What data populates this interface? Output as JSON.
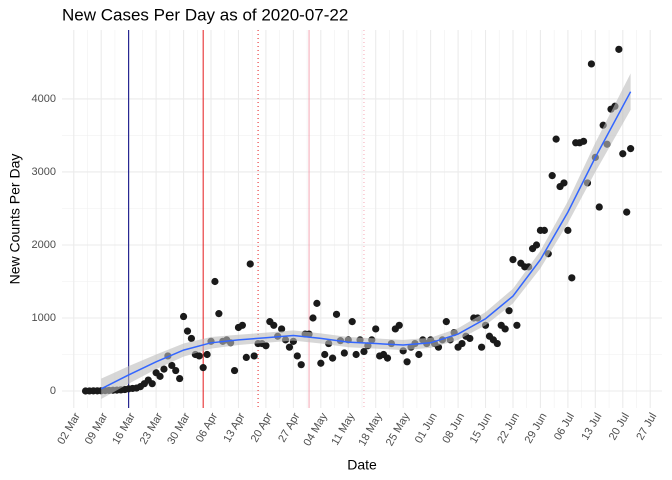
{
  "chart_data": {
    "type": "scatter",
    "title": "New Cases Per Day as of 2020-07-22",
    "x_label": "Date",
    "y_label": "New Counts Per Day",
    "x": [
      "2020-03-05",
      "2020-03-06",
      "2020-03-07",
      "2020-03-08",
      "2020-03-09",
      "2020-03-10",
      "2020-03-11",
      "2020-03-12",
      "2020-03-13",
      "2020-03-14",
      "2020-03-15",
      "2020-03-16",
      "2020-03-17",
      "2020-03-18",
      "2020-03-19",
      "2020-03-20",
      "2020-03-21",
      "2020-03-22",
      "2020-03-23",
      "2020-03-24",
      "2020-03-25",
      "2020-03-26",
      "2020-03-27",
      "2020-03-28",
      "2020-03-29",
      "2020-03-30",
      "2020-03-31",
      "2020-04-01",
      "2020-04-02",
      "2020-04-03",
      "2020-04-04",
      "2020-04-05",
      "2020-04-06",
      "2020-04-07",
      "2020-04-08",
      "2020-04-09",
      "2020-04-10",
      "2020-04-11",
      "2020-04-12",
      "2020-04-13",
      "2020-04-14",
      "2020-04-15",
      "2020-04-16",
      "2020-04-17",
      "2020-04-18",
      "2020-04-19",
      "2020-04-20",
      "2020-04-21",
      "2020-04-22",
      "2020-04-23",
      "2020-04-24",
      "2020-04-25",
      "2020-04-26",
      "2020-04-27",
      "2020-04-28",
      "2020-04-29",
      "2020-04-30",
      "2020-05-01",
      "2020-05-02",
      "2020-05-03",
      "2020-05-04",
      "2020-05-05",
      "2020-05-06",
      "2020-05-07",
      "2020-05-08",
      "2020-05-09",
      "2020-05-10",
      "2020-05-11",
      "2020-05-12",
      "2020-05-13",
      "2020-05-14",
      "2020-05-15",
      "2020-05-16",
      "2020-05-17",
      "2020-05-18",
      "2020-05-19",
      "2020-05-20",
      "2020-05-21",
      "2020-05-22",
      "2020-05-23",
      "2020-05-24",
      "2020-05-25",
      "2020-05-26",
      "2020-05-27",
      "2020-05-28",
      "2020-05-29",
      "2020-05-30",
      "2020-05-31",
      "2020-06-01",
      "2020-06-02",
      "2020-06-03",
      "2020-06-04",
      "2020-06-05",
      "2020-06-06",
      "2020-06-07",
      "2020-06-08",
      "2020-06-09",
      "2020-06-10",
      "2020-06-11",
      "2020-06-12",
      "2020-06-13",
      "2020-06-14",
      "2020-06-15",
      "2020-06-16",
      "2020-06-17",
      "2020-06-18",
      "2020-06-19",
      "2020-06-20",
      "2020-06-21",
      "2020-06-22",
      "2020-06-23",
      "2020-06-24",
      "2020-06-25",
      "2020-06-26",
      "2020-06-27",
      "2020-06-28",
      "2020-06-29",
      "2020-06-30",
      "2020-07-01",
      "2020-07-02",
      "2020-07-03",
      "2020-07-04",
      "2020-07-05",
      "2020-07-06",
      "2020-07-07",
      "2020-07-08",
      "2020-07-09",
      "2020-07-10",
      "2020-07-11",
      "2020-07-12",
      "2020-07-13",
      "2020-07-14",
      "2020-07-15",
      "2020-07-16",
      "2020-07-17",
      "2020-07-18",
      "2020-07-19",
      "2020-07-20",
      "2020-07-21",
      "2020-07-22"
    ],
    "values": [
      0,
      1,
      2,
      2,
      3,
      5,
      8,
      10,
      12,
      15,
      20,
      30,
      35,
      40,
      60,
      100,
      150,
      100,
      250,
      200,
      300,
      480,
      350,
      280,
      170,
      1020,
      820,
      720,
      500,
      480,
      320,
      500,
      680,
      1500,
      1060,
      680,
      700,
      660,
      280,
      870,
      900,
      460,
      1740,
      480,
      650,
      650,
      620,
      950,
      900,
      750,
      850,
      700,
      600,
      680,
      480,
      360,
      780,
      780,
      1000,
      1200,
      380,
      500,
      650,
      450,
      1050,
      690,
      520,
      700,
      950,
      500,
      700,
      540,
      620,
      700,
      850,
      480,
      500,
      450,
      650,
      850,
      900,
      550,
      400,
      600,
      650,
      500,
      700,
      650,
      700,
      650,
      600,
      700,
      950,
      700,
      800,
      600,
      650,
      750,
      720,
      1000,
      1000,
      600,
      900,
      750,
      700,
      650,
      900,
      850,
      1100,
      1800,
      900,
      1750,
      1700,
      1700,
      1950,
      2000,
      2200,
      2200,
      1880,
      2950,
      3450,
      2800,
      2850,
      2200,
      1550,
      3400,
      3400,
      3420,
      2850,
      4480,
      3200,
      2520,
      3640,
      3380,
      3860,
      3900,
      4680,
      3250,
      2450,
      3320
    ],
    "color": "#1a1a1a",
    "smooth": {
      "x": [
        "2020-03-09",
        "2020-03-16",
        "2020-03-23",
        "2020-03-30",
        "2020-04-06",
        "2020-04-13",
        "2020-04-20",
        "2020-04-27",
        "2020-05-04",
        "2020-05-11",
        "2020-05-18",
        "2020-05-25",
        "2020-06-01",
        "2020-06-08",
        "2020-06-15",
        "2020-06-22",
        "2020-06-29",
        "2020-07-06",
        "2020-07-13",
        "2020-07-22"
      ],
      "values": [
        30,
        220,
        400,
        560,
        660,
        700,
        730,
        760,
        720,
        670,
        650,
        630,
        660,
        780,
        990,
        1300,
        1800,
        2450,
        3200,
        4100
      ],
      "lower": [
        -110,
        100,
        300,
        470,
        580,
        630,
        660,
        690,
        650,
        600,
        580,
        560,
        590,
        700,
        900,
        1200,
        1680,
        2300,
        3000,
        3850
      ],
      "upper": [
        170,
        340,
        500,
        650,
        740,
        770,
        800,
        830,
        790,
        740,
        720,
        700,
        730,
        860,
        1080,
        1400,
        1920,
        2600,
        3400,
        4350
      ],
      "color": "#3366ff",
      "fill": "#bdbdbd"
    },
    "vlines": [
      {
        "x": "2020-03-16",
        "color": "#000080",
        "style": "solid"
      },
      {
        "x": "2020-04-04",
        "color": "#e41a1c",
        "style": "solid"
      },
      {
        "x": "2020-04-18",
        "color": "#e41a1c",
        "style": "dotted"
      },
      {
        "x": "2020-05-01",
        "color": "#f4a6b4",
        "style": "solid"
      },
      {
        "x": "2020-05-15",
        "color": "#f4a6b4",
        "style": "dotted"
      }
    ],
    "xlim": [
      "2020-02-28",
      "2020-07-30"
    ],
    "xticks": [
      {
        "value": "2020-03-02",
        "label": "02 Mar"
      },
      {
        "value": "2020-03-09",
        "label": "09 Mar"
      },
      {
        "value": "2020-03-16",
        "label": "16 Mar"
      },
      {
        "value": "2020-03-23",
        "label": "23 Mar"
      },
      {
        "value": "2020-03-30",
        "label": "30 Mar"
      },
      {
        "value": "2020-04-06",
        "label": "06 Apr"
      },
      {
        "value": "2020-04-13",
        "label": "13 Apr"
      },
      {
        "value": "2020-04-20",
        "label": "20 Apr"
      },
      {
        "value": "2020-04-27",
        "label": "27 Apr"
      },
      {
        "value": "2020-05-04",
        "label": "04 May"
      },
      {
        "value": "2020-05-11",
        "label": "11 May"
      },
      {
        "value": "2020-05-18",
        "label": "18 May"
      },
      {
        "value": "2020-05-25",
        "label": "25 May"
      },
      {
        "value": "2020-06-01",
        "label": "01 Jun"
      },
      {
        "value": "2020-06-08",
        "label": "08 Jun"
      },
      {
        "value": "2020-06-15",
        "label": "15 Jun"
      },
      {
        "value": "2020-06-22",
        "label": "22 Jun"
      },
      {
        "value": "2020-06-29",
        "label": "29 Jun"
      },
      {
        "value": "2020-07-06",
        "label": "06 Jul"
      },
      {
        "value": "2020-07-13",
        "label": "13 Jul"
      },
      {
        "value": "2020-07-20",
        "label": "20 Jul"
      },
      {
        "value": "2020-07-27",
        "label": "27 Jul"
      }
    ],
    "ylim": [
      -233,
      4945
    ],
    "yticks": [
      0,
      1000,
      2000,
      3000,
      4000
    ],
    "grid": true
  }
}
